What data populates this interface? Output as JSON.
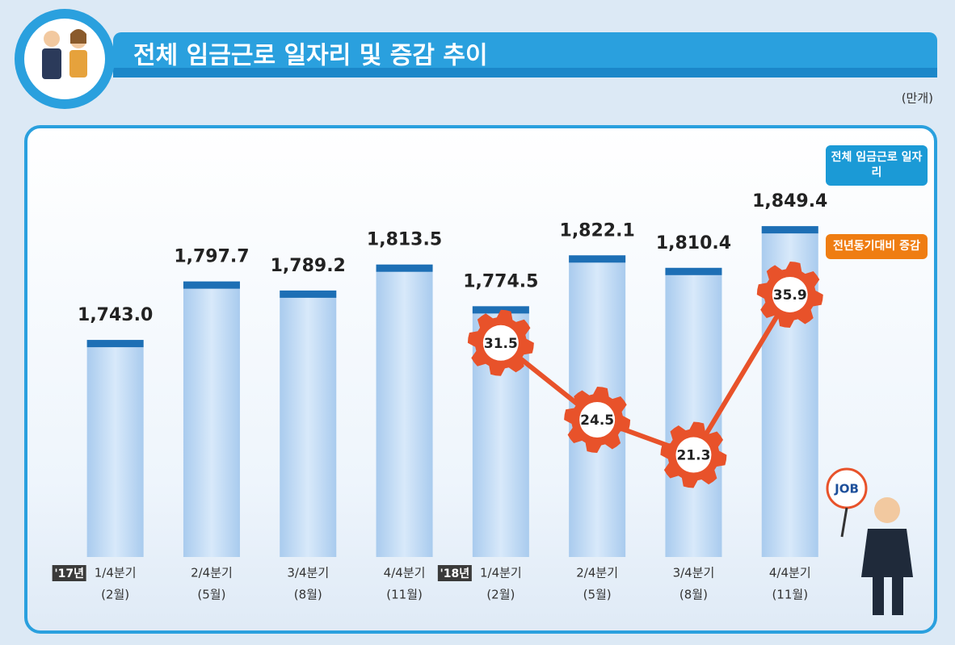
{
  "chart_data": {
    "type": "bar_line",
    "title": "전체 임금근로 일자리 및 증감 추이",
    "unit": "(만개)",
    "categories": [
      "1/4분기",
      "2/4분기",
      "3/4분기",
      "4/4분기",
      "1/4분기",
      "2/4분기",
      "3/4분기",
      "4/4분기"
    ],
    "sub_categories": [
      "(2월)",
      "(5월)",
      "(8월)",
      "(11월)",
      "(2월)",
      "(5월)",
      "(8월)",
      "(11월)"
    ],
    "year_labels": [
      "'17년",
      null,
      null,
      null,
      "'18년",
      null,
      null,
      null
    ],
    "series": [
      {
        "name": "전체 임금근로 일자리",
        "color": "#1d6fb5",
        "type": "bar",
        "values": [
          1743.0,
          1797.7,
          1789.2,
          1813.5,
          1774.5,
          1822.1,
          1810.4,
          1849.4
        ],
        "value_labels": [
          "1,743.0",
          "1,797.7",
          "1,789.2",
          "1,813.5",
          "1,774.5",
          "1,822.1",
          "1,810.4",
          "1,849.4"
        ]
      },
      {
        "name": "전년동기대비 증감",
        "color": "#e8522a",
        "type": "line",
        "axis": "y2",
        "values": [
          null,
          null,
          null,
          null,
          31.5,
          24.5,
          21.3,
          35.9
        ]
      }
    ],
    "ylim": [
      1540,
      1925
    ],
    "y2lim": [
      12,
      49.5
    ]
  }
}
